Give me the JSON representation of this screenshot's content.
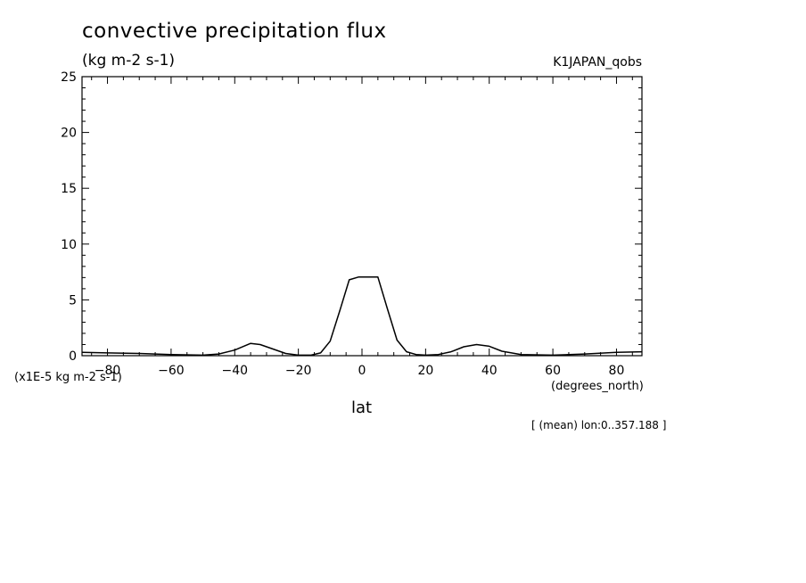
{
  "header": {
    "title": "convective precipitation flux",
    "units": "(kg m-2 s-1)",
    "dataset": "K1JAPAN_qobs"
  },
  "footer": {
    "scale_note": "(x1E-5 kg m-2 s-1)",
    "x_units": "(degrees_north)",
    "x_label": "lat",
    "mean_note": "[ (mean) lon:0..357.188 ]"
  },
  "chart_data": {
    "type": "line",
    "title": "convective precipitation flux",
    "xlabel": "lat",
    "ylabel": "(x1E-5 kg m-2 s-1)",
    "xlim": [
      -88,
      88
    ],
    "ylim": [
      0,
      25
    ],
    "x_ticks": [
      -80,
      -60,
      -40,
      -20,
      0,
      20,
      40,
      60,
      80
    ],
    "y_ticks": [
      0,
      5,
      10,
      15,
      20,
      25
    ],
    "grid": false,
    "series": [
      {
        "color": "#000000",
        "x": [
          -88,
          -80,
          -70,
          -60,
          -50,
          -45,
          -40,
          -35,
          -32,
          -28,
          -24,
          -20,
          -16,
          -13,
          -10,
          -7,
          -4,
          -1,
          2,
          5,
          8,
          11,
          14,
          17,
          20,
          24,
          28,
          32,
          36,
          40,
          44,
          50,
          60,
          70,
          80,
          88
        ],
        "values": [
          0.3,
          0.25,
          0.2,
          0.1,
          0.05,
          0.15,
          0.5,
          1.1,
          1.0,
          0.6,
          0.2,
          0.05,
          0.05,
          0.25,
          1.3,
          4.0,
          6.8,
          7.05,
          7.05,
          7.05,
          4.2,
          1.4,
          0.35,
          0.1,
          0.05,
          0.1,
          0.35,
          0.8,
          1.0,
          0.85,
          0.4,
          0.1,
          0.05,
          0.15,
          0.3,
          0.35
        ]
      }
    ]
  }
}
